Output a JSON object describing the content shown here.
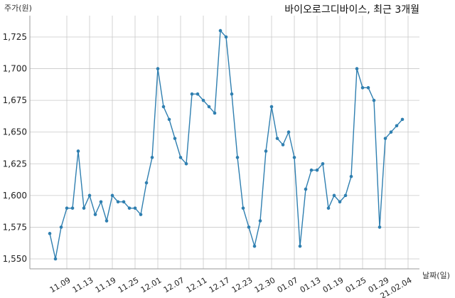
{
  "chart_data": {
    "type": "line",
    "title": "바이오로그디바이스, 최근 3개월",
    "ylabel": "주가(원)",
    "xlabel": "날짜(일)",
    "ylim": [
      1540,
      1735
    ],
    "yticks": [
      1550,
      1575,
      1600,
      1625,
      1650,
      1675,
      1700,
      1725
    ],
    "ytick_labels": [
      "1,550",
      "1,575",
      "1,600",
      "1,625",
      "1,650",
      "1,675",
      "1,700",
      "1,725"
    ],
    "xtick_labels": [
      "11.09",
      "11.13",
      "11.19",
      "11.25",
      "12.01",
      "12.07",
      "12.11",
      "12.17",
      "12.23",
      "12.30",
      "01.07",
      "01.13",
      "01.19",
      "01.25",
      "01.29",
      "21.02.04"
    ],
    "xtick_indices": [
      3,
      7,
      11,
      15,
      19,
      23,
      27,
      31,
      35,
      39,
      43,
      47,
      51,
      55,
      59,
      63
    ],
    "grid": true,
    "series": [
      {
        "values": [
          1570,
          1550,
          1575,
          1590,
          1590,
          1635,
          1590,
          1600,
          1585,
          1595,
          1580,
          1600,
          1595,
          1595,
          1590,
          1590,
          1585,
          1610,
          1630,
          1700,
          1670,
          1660,
          1645,
          1630,
          1625,
          1680,
          1680,
          1675,
          1670,
          1665,
          1730,
          1725,
          1680,
          1630,
          1590,
          1575,
          1560,
          1580,
          1635,
          1670,
          1645,
          1640,
          1650,
          1630,
          1560,
          1605,
          1620,
          1620,
          1625,
          1590,
          1600,
          1595,
          1600,
          1615,
          1700,
          1685,
          1685,
          1675,
          1575,
          1645,
          1650,
          1655,
          1660
        ],
        "color": "#2f7fb0"
      }
    ]
  }
}
